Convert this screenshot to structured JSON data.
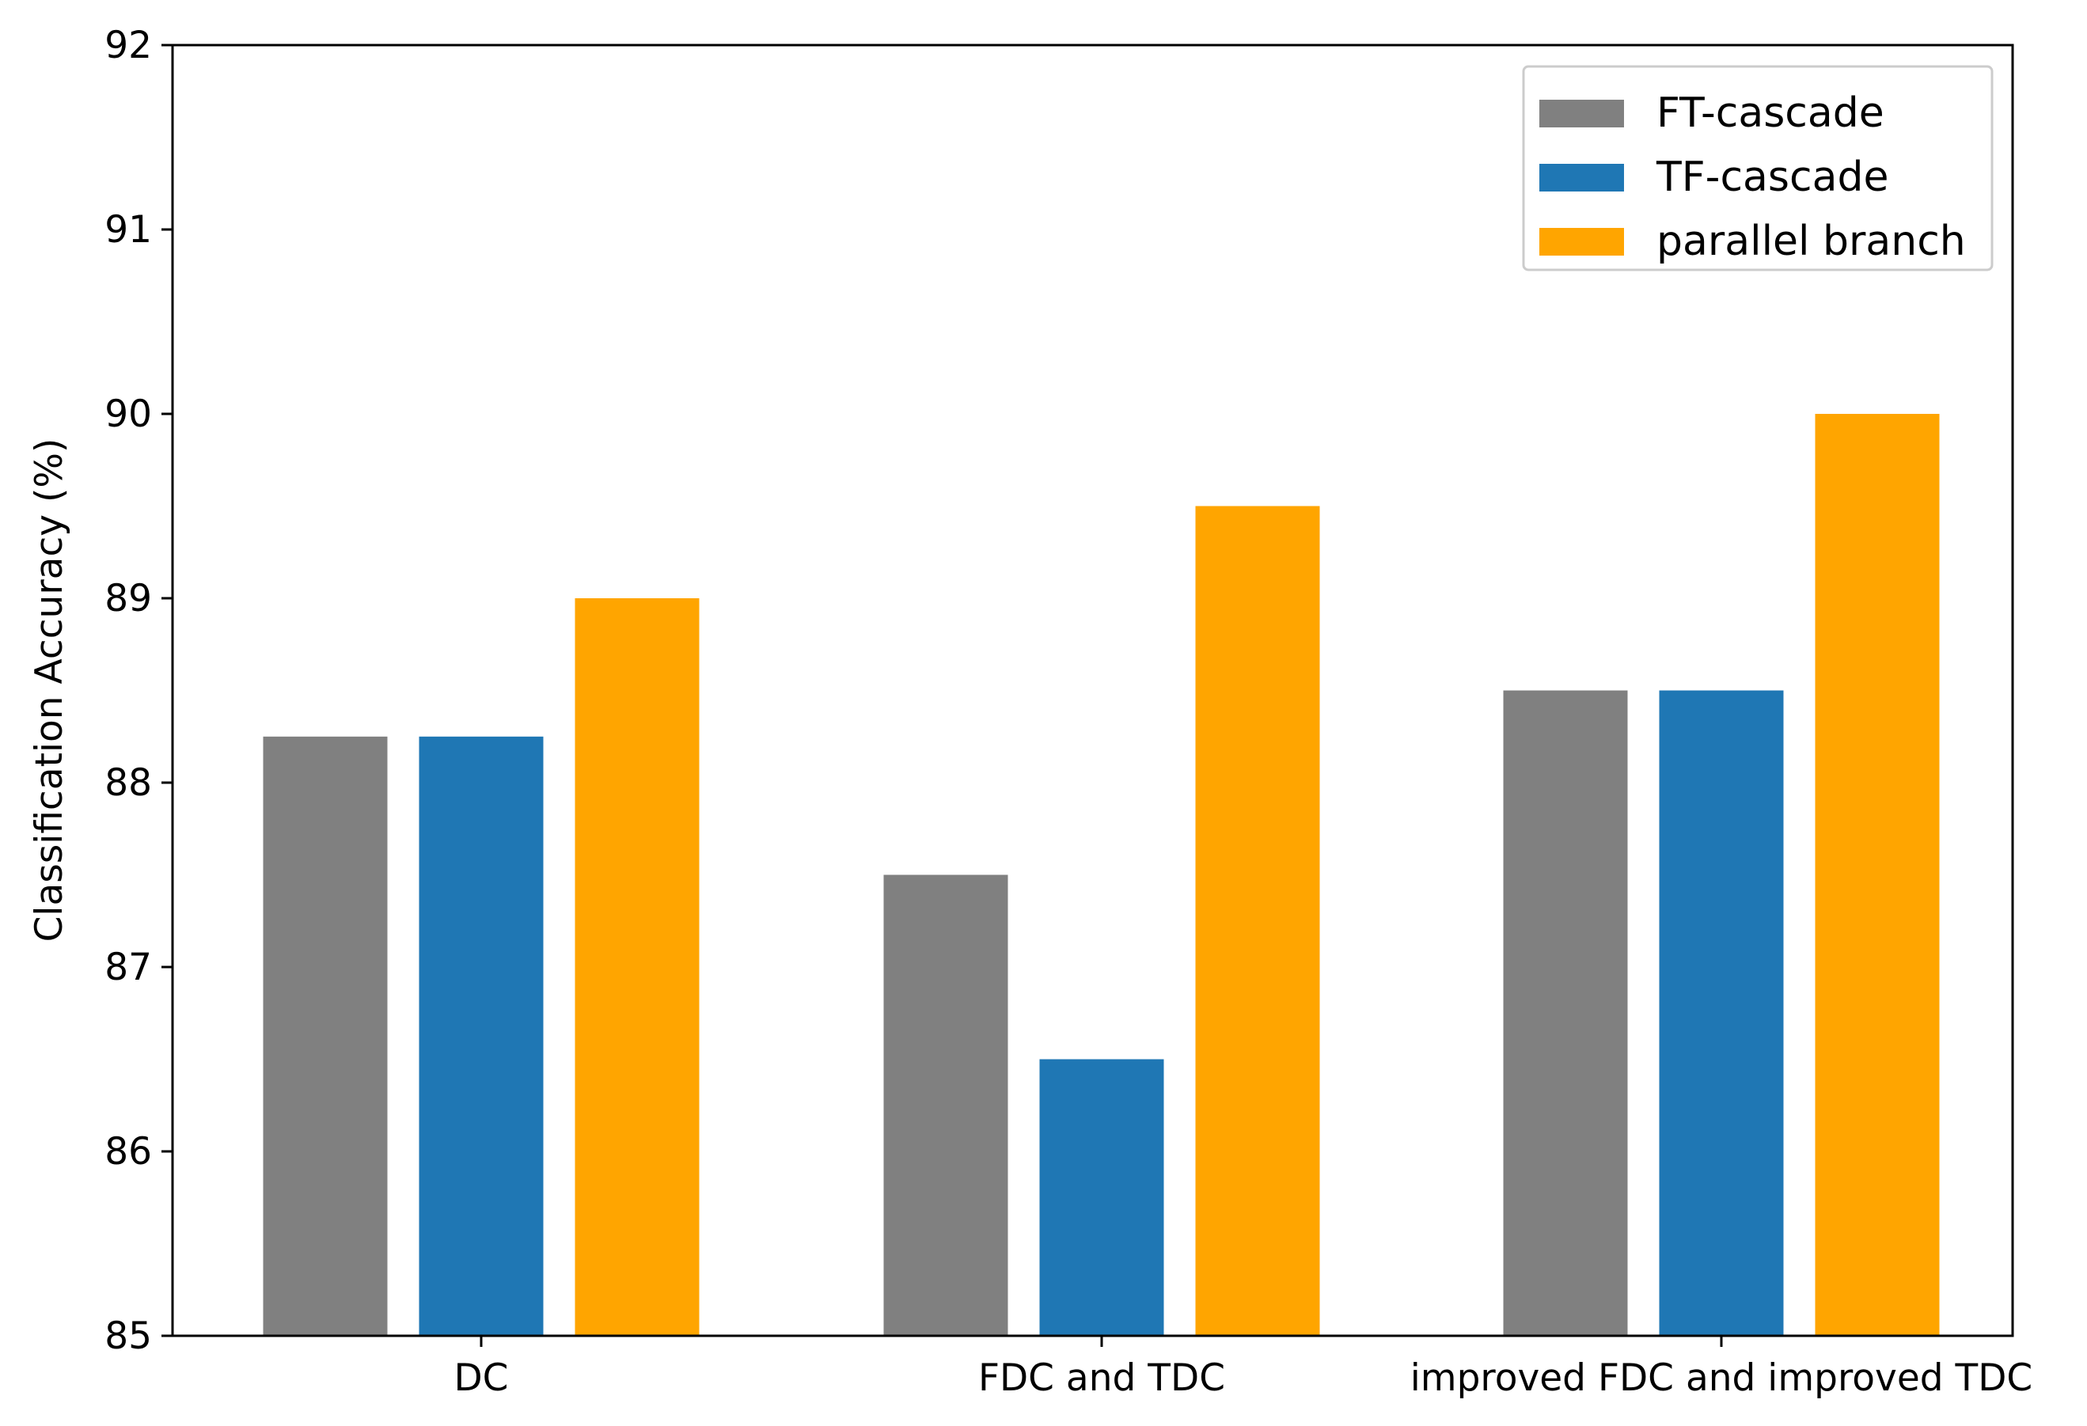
{
  "chart_data": {
    "type": "bar",
    "title": "",
    "xlabel": "",
    "ylabel": "Classification Accuracy (%)",
    "ylim": [
      85,
      92
    ],
    "yticks": [
      85,
      86,
      87,
      88,
      89,
      90,
      91,
      92
    ],
    "categories": [
      "DC",
      "FDC and TDC",
      "improved FDC and improved TDC"
    ],
    "series": [
      {
        "name": "FT-cascade",
        "color": "#808080",
        "values": [
          88.25,
          87.5,
          88.5
        ]
      },
      {
        "name": "TF-cascade",
        "color": "#1f77b4",
        "values": [
          88.25,
          86.5,
          88.5
        ]
      },
      {
        "name": "parallel branch",
        "color": "#ffa500",
        "values": [
          89.0,
          89.5,
          90.0
        ]
      }
    ],
    "legend_position": "top-right",
    "grid": false
  }
}
